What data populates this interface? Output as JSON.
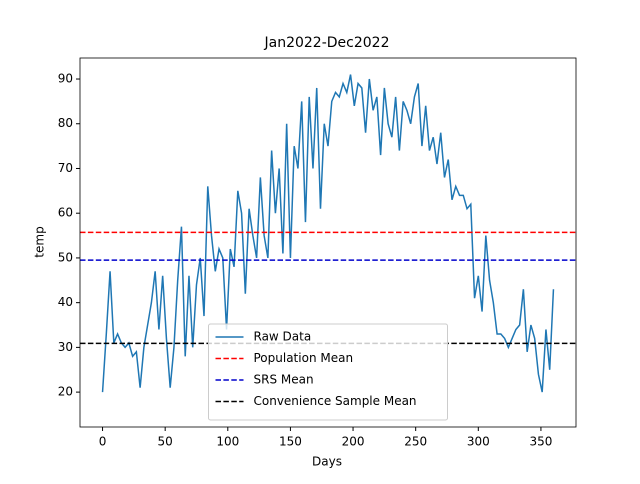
{
  "chart_data": {
    "type": "line",
    "title": "Jan2022-Dec2022",
    "xlabel": "Days",
    "ylabel": "temp",
    "x": [
      0,
      3,
      6,
      9,
      12,
      15,
      18,
      21,
      24,
      27,
      30,
      33,
      36,
      39,
      42,
      45,
      48,
      51,
      54,
      57,
      60,
      63,
      66,
      69,
      72,
      75,
      78,
      81,
      84,
      87,
      90,
      93,
      96,
      99,
      102,
      105,
      108,
      111,
      114,
      117,
      120,
      123,
      126,
      129,
      132,
      135,
      138,
      141,
      144,
      147,
      150,
      153,
      156,
      159,
      162,
      165,
      168,
      171,
      174,
      177,
      180,
      183,
      186,
      189,
      192,
      195,
      198,
      201,
      204,
      207,
      210,
      213,
      216,
      219,
      222,
      225,
      228,
      231,
      234,
      237,
      240,
      243,
      246,
      249,
      252,
      255,
      258,
      261,
      264,
      267,
      270,
      273,
      276,
      279,
      282,
      285,
      288,
      291,
      294,
      297,
      300,
      303,
      306,
      309,
      312,
      315,
      318,
      321,
      324,
      327,
      330,
      333,
      336,
      339,
      342,
      345,
      348,
      351,
      354,
      357,
      360
    ],
    "series": [
      {
        "name": "Raw Data",
        "color": "#1f77b4",
        "values": [
          20,
          33,
          47,
          31,
          33,
          31,
          30,
          31,
          28,
          29,
          21,
          30,
          35,
          40,
          47,
          34,
          46,
          32,
          21,
          30,
          45,
          57,
          28,
          46,
          30,
          44,
          50,
          37,
          66,
          55,
          47,
          52,
          50,
          34,
          52,
          48,
          65,
          60,
          42,
          61,
          55,
          50,
          68,
          55,
          50,
          74,
          60,
          70,
          51,
          80,
          50,
          75,
          70,
          85,
          58,
          86,
          70,
          88,
          61,
          80,
          75,
          85,
          87,
          86,
          89,
          87,
          91,
          84,
          89,
          88,
          78,
          90,
          83,
          86,
          73,
          88,
          80,
          77,
          86,
          74,
          85,
          83,
          80,
          86,
          89,
          75,
          84,
          74,
          77,
          71,
          78,
          68,
          72,
          63,
          66,
          64,
          64,
          61,
          62,
          41,
          46,
          38,
          55,
          45,
          40,
          33,
          33,
          32,
          30,
          32,
          34,
          35,
          43,
          29,
          35,
          32,
          24,
          20,
          34,
          25,
          43
        ]
      }
    ],
    "hlines": [
      {
        "name": "Population Mean",
        "color": "#ff0000",
        "value": 55.7
      },
      {
        "name": "SRS Mean",
        "color": "#0000cc",
        "value": 49.5
      },
      {
        "name": "Convenience Sample Mean",
        "color": "#000000",
        "value": 30.9
      }
    ],
    "xlim": [
      -18,
      378
    ],
    "xticks": [
      0,
      50,
      100,
      150,
      200,
      250,
      300,
      350
    ],
    "ylim": [
      12.2,
      94.7
    ],
    "yticks": [
      20,
      30,
      40,
      50,
      60,
      70,
      80,
      90
    ],
    "legend": "lower center"
  }
}
